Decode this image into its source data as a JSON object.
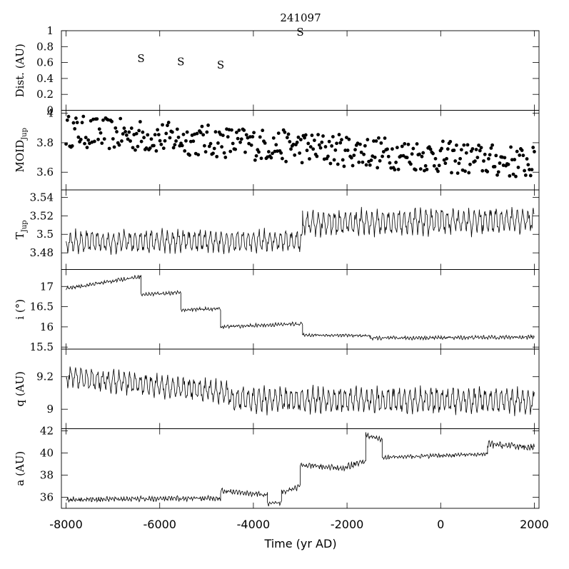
{
  "chart_data": {
    "type": "line",
    "title": "241097",
    "xlabel": "Time (yr AD)",
    "xlim": [
      -8100,
      2100
    ],
    "xticks": [
      -8000,
      -6000,
      -4000,
      -2000,
      0,
      2000
    ],
    "panels": [
      {
        "id": "dist",
        "ylabel": "Dist. (AU)",
        "ylim": [
          0,
          1
        ],
        "yticks": [
          "0",
          "0.2",
          "0.4",
          "0.6",
          "0.8",
          "1"
        ],
        "yvals": [
          0,
          0.2,
          0.4,
          0.6,
          0.8,
          1.0
        ],
        "kind": "markers",
        "marker_label": "S",
        "points": [
          {
            "x": -6400,
            "y": 0.65
          },
          {
            "x": -5550,
            "y": 0.61
          },
          {
            "x": -4700,
            "y": 0.57
          },
          {
            "x": -3000,
            "y": 0.98
          }
        ]
      },
      {
        "id": "moid",
        "ylabel": "MOID",
        "ylabel_sub": "Jup",
        "ylim": [
          3.48,
          4.02
        ],
        "yticks": [
          "3.6",
          "3.8",
          "4"
        ],
        "yvals": [
          3.6,
          3.8,
          4.0
        ],
        "kind": "scatter",
        "start": [
          -8000,
          3.88
        ],
        "end": [
          2000,
          3.66
        ],
        "spread": 0.11,
        "n": 380
      },
      {
        "id": "tjup",
        "ylabel": "T",
        "ylabel_sub": "Jup",
        "ylim": [
          3.462,
          3.548
        ],
        "yticks": [
          "3.48",
          "3.5",
          "3.52",
          "3.54"
        ],
        "yvals": [
          3.48,
          3.5,
          3.52,
          3.54
        ],
        "kind": "oscillation",
        "segments": [
          {
            "x0": -8000,
            "x1": -2950,
            "mean0": 3.492,
            "mean1": 3.493,
            "amp": 0.012
          },
          {
            "x0": -2950,
            "x1": 2000,
            "mean0": 3.512,
            "mean1": 3.515,
            "amp": 0.014
          }
        ]
      },
      {
        "id": "inc",
        "ylabel": "i (°)",
        "ylim": [
          15.45,
          17.42
        ],
        "yticks": [
          "15.5",
          "16",
          "16.5",
          "17"
        ],
        "yvals": [
          15.5,
          16.0,
          16.5,
          17.0
        ],
        "kind": "steps",
        "steps": [
          {
            "x0": -8000,
            "x1": -6400,
            "mean0": 16.95,
            "mean1": 17.25,
            "amp": 0.05
          },
          {
            "x0": -6400,
            "x1": -5550,
            "mean0": 16.8,
            "mean1": 16.85,
            "amp": 0.05
          },
          {
            "x0": -5550,
            "x1": -4700,
            "mean0": 16.42,
            "mean1": 16.45,
            "amp": 0.05
          },
          {
            "x0": -4700,
            "x1": -2950,
            "mean0": 16.0,
            "mean1": 16.08,
            "amp": 0.05
          },
          {
            "x0": -2950,
            "x1": -1500,
            "mean0": 15.8,
            "mean1": 15.78,
            "amp": 0.04
          },
          {
            "x0": -1500,
            "x1": 2000,
            "mean0": 15.72,
            "mean1": 15.75,
            "amp": 0.05
          }
        ]
      },
      {
        "id": "q",
        "ylabel": "q (AU)",
        "ylim": [
          8.88,
          9.37
        ],
        "yticks": [
          "9",
          "9.2"
        ],
        "yvals": [
          9.0,
          9.2
        ],
        "kind": "oscillation",
        "segments": [
          {
            "x0": -8000,
            "x1": -4500,
            "mean0": 9.2,
            "mean1": 9.1,
            "amp": 0.07
          },
          {
            "x0": -4500,
            "x1": 2000,
            "mean0": 9.06,
            "mean1": 9.05,
            "amp": 0.08
          }
        ]
      },
      {
        "id": "a",
        "ylabel": "a (AU)",
        "ylim": [
          35.0,
          42.2
        ],
        "yticks": [
          "36",
          "38",
          "40",
          "42"
        ],
        "yvals": [
          36,
          38,
          40,
          42
        ],
        "kind": "steps",
        "steps": [
          {
            "x0": -8000,
            "x1": -4700,
            "mean0": 35.8,
            "mean1": 35.9,
            "amp": 0.25
          },
          {
            "x0": -4700,
            "x1": -3700,
            "mean0": 36.6,
            "mean1": 36.2,
            "amp": 0.25
          },
          {
            "x0": -3700,
            "x1": -3400,
            "mean0": 35.4,
            "mean1": 35.5,
            "amp": 0.2
          },
          {
            "x0": -3400,
            "x1": -3000,
            "mean0": 36.5,
            "mean1": 37.0,
            "amp": 0.3
          },
          {
            "x0": -3000,
            "x1": -2000,
            "mean0": 38.9,
            "mean1": 38.6,
            "amp": 0.25
          },
          {
            "x0": -2000,
            "x1": -1600,
            "mean0": 38.8,
            "mean1": 39.3,
            "amp": 0.3
          },
          {
            "x0": -1600,
            "x1": -1250,
            "mean0": 41.6,
            "mean1": 41.2,
            "amp": 0.3
          },
          {
            "x0": -1250,
            "x1": 1000,
            "mean0": 39.6,
            "mean1": 39.9,
            "amp": 0.2
          },
          {
            "x0": 1000,
            "x1": 2000,
            "mean0": 40.8,
            "mean1": 40.5,
            "amp": 0.35
          }
        ]
      }
    ]
  }
}
